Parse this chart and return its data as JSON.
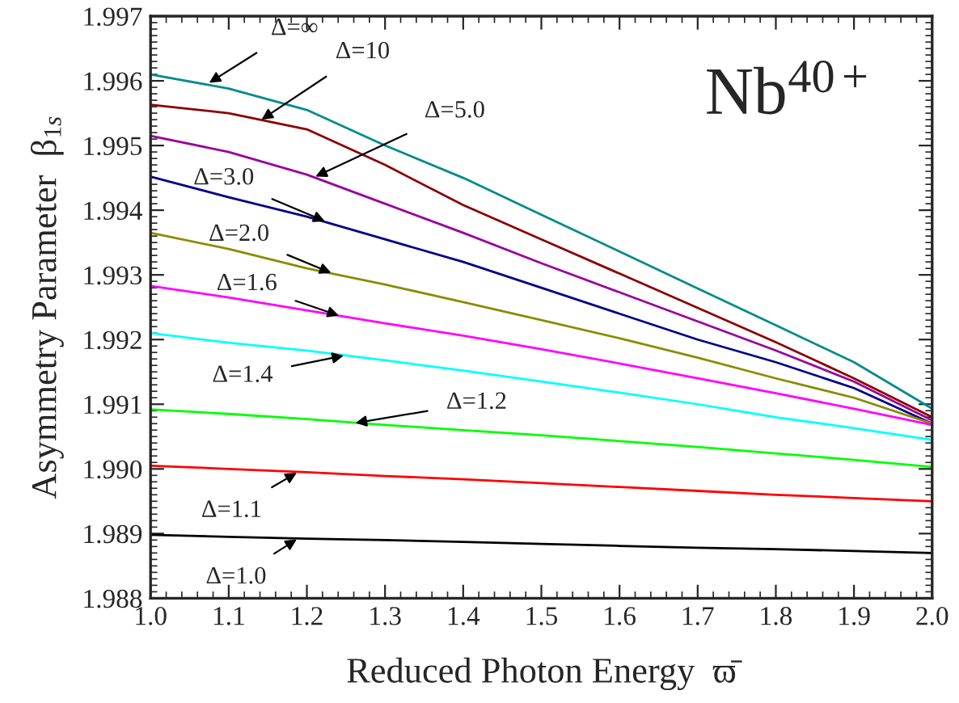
{
  "chart_data": {
    "type": "line",
    "xlabel": "Reduced Photon Energy  ϖ̄",
    "ylabel": "Asymmetry Parameter  β$_{1s}$",
    "x": [
      1.0,
      1.1,
      1.2,
      1.3,
      1.4,
      1.5,
      1.6,
      1.7,
      1.8,
      1.9,
      2.0
    ],
    "series": [
      {
        "color": "#008b8b",
        "values": [
          1.9961,
          1.99588,
          1.99555,
          1.995,
          1.9945,
          1.99393,
          1.99336,
          1.99279,
          1.99222,
          1.99165,
          1.99093
        ]
      },
      {
        "color": "#8b0000",
        "values": [
          1.99563,
          1.9955,
          1.99525,
          1.9947,
          1.99408,
          1.99355,
          1.99302,
          1.99249,
          1.99196,
          1.9914,
          1.9908
        ]
      },
      {
        "color": "#990099",
        "values": [
          1.99515,
          1.9949,
          1.99455,
          1.9941,
          1.99365,
          1.99318,
          1.99273,
          1.99228,
          1.99183,
          1.99135,
          1.99075
        ]
      },
      {
        "color": "#00008b",
        "values": [
          1.99452,
          1.9942,
          1.9939,
          1.99355,
          1.9932,
          1.9928,
          1.9924,
          1.992,
          1.99165,
          1.99125,
          1.9907
        ]
      },
      {
        "color": "#8b8b00",
        "values": [
          1.99365,
          1.9934,
          1.9931,
          1.99285,
          1.99258,
          1.9923,
          1.99202,
          1.99172,
          1.9914,
          1.9911,
          1.9907
        ]
      },
      {
        "color": "#ff00ff",
        "values": [
          1.99283,
          1.99265,
          1.99245,
          1.99225,
          1.99206,
          1.99185,
          1.99163,
          1.9914,
          1.99117,
          1.99093,
          1.99068
        ]
      },
      {
        "color": "#00ffff",
        "values": [
          1.9921,
          1.99195,
          1.99183,
          1.99168,
          1.99152,
          1.99135,
          1.99118,
          1.991,
          1.9908,
          1.99063,
          1.99045
        ]
      },
      {
        "color": "#00ff00",
        "values": [
          1.99092,
          1.99085,
          1.99077,
          1.99068,
          1.9906,
          1.99052,
          1.99043,
          1.99034,
          1.99024,
          1.99014,
          1.99003
        ]
      },
      {
        "color": "#ff0000",
        "values": [
          1.99005,
          1.99,
          1.98995,
          1.98989,
          1.98984,
          1.98978,
          1.98972,
          1.98966,
          1.9896,
          1.98955,
          1.9895
        ]
      },
      {
        "color": "#000000",
        "values": [
          1.98898,
          1.98895,
          1.98892,
          1.9889,
          1.98887,
          1.98884,
          1.98881,
          1.98878,
          1.98876,
          1.98873,
          1.9887
        ]
      }
    ],
    "xlim": [
      1.0,
      2.0
    ],
    "ylim": [
      1.988,
      1.997
    ],
    "xticks": [
      {
        "value": 1.0,
        "label": "1.0"
      },
      1.1,
      1.2,
      1.3,
      1.4,
      1.5,
      1.6,
      1.7,
      1.8,
      1.9,
      {
        "value": 2.0,
        "label": "2.0"
      }
    ],
    "yticks": [
      1.988,
      1.989,
      {
        "value": 1.99,
        "label": "1.990"
      },
      1.991,
      1.992,
      1.993,
      1.994,
      1.995,
      1.996,
      1.997
    ],
    "grid": false,
    "legend": false,
    "marker": "none",
    "line_style": "solid",
    "annotations": [
      {
        "text": "Δ=∞",
        "x": 1.075,
        "y": 1.99597
      },
      {
        "text": "Δ=10",
        "x": 1.142,
        "y": 1.9954
      },
      {
        "text": "Δ=5.0",
        "x": 1.211,
        "y": 1.99452
      },
      {
        "text": "Δ=3.0",
        "x": 1.223,
        "y": 1.99383
      },
      {
        "text": "Δ=2.0",
        "x": 1.231,
        "y": 1.99303
      },
      {
        "text": "Δ=1.6",
        "x": 1.241,
        "y": 1.99237
      },
      {
        "text": "Δ=1.4",
        "x": 1.247,
        "y": 1.99175
      },
      {
        "text": "Δ=1.2",
        "x": 1.262,
        "y": 1.99071
      },
      {
        "text": "Δ=1.1",
        "x": 1.187,
        "y": 1.98994
      },
      {
        "text": "Δ=1.0",
        "x": 1.187,
        "y": 1.98891
      },
      "Nb$^{40+}$"
    ]
  }
}
